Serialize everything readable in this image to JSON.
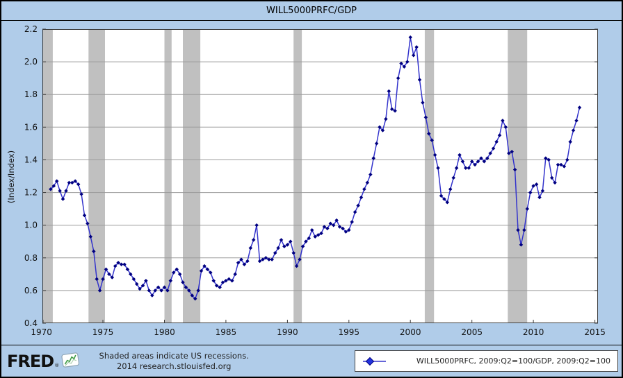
{
  "window": {
    "background_color": "#b0cce9",
    "border_color": "#000000"
  },
  "title": "WILL5000PRFC/GDP",
  "footer": {
    "logo_text": "FRED",
    "logo_reg": "®",
    "logo_chart_icon": "line-chart-icon",
    "logo_icon_color": "#3f9b44",
    "note_line1": "Shaded areas indicate US recessions.",
    "note_line2": "2014 research.stlouisfed.org",
    "legend": {
      "marker": "diamond-with-line",
      "marker_color": "#2233dd",
      "marker_edge_color": "#000080",
      "line_color": "#3333cc",
      "label": "WILL5000PRFC, 2009:Q2=100/GDP, 2009:Q2=100"
    }
  },
  "chart_data": {
    "type": "line",
    "title": "WILL5000PRFC/GDP",
    "xlabel": "",
    "ylabel": "(Index/Index)",
    "xlim": [
      1970.08,
      2015.25
    ],
    "ylim": [
      0.4,
      2.2
    ],
    "x_ticks": [
      1970,
      1975,
      1980,
      1985,
      1990,
      1995,
      2000,
      2005,
      2010,
      2015
    ],
    "y_ticks": [
      0.4,
      0.6,
      0.8,
      1.0,
      1.2,
      1.4,
      1.6,
      1.8,
      2.0,
      2.2
    ],
    "grid": "horizontal",
    "grid_color": "#9a9a9a",
    "frame_color": "#3a3a3a",
    "plot_background": "#ffffff",
    "line_color": "#3333cc",
    "marker": "diamond",
    "marker_color": "#000080",
    "recession_color": "#c0c0c0",
    "recessions": [
      [
        1969.92,
        1970.92
      ],
      [
        1973.83,
        1975.17
      ],
      [
        1980.0,
        1980.58
      ],
      [
        1981.5,
        1982.92
      ],
      [
        1990.5,
        1991.17
      ],
      [
        2001.17,
        2001.92
      ],
      [
        2007.92,
        2009.5
      ]
    ],
    "series": [
      {
        "name": "WILL5000PRFC, 2009:Q2=100/GDP, 2009:Q2=100",
        "frequency": "quarterly",
        "x_start": 1970.75,
        "x_step": 0.25,
        "values": [
          1.22,
          1.24,
          1.27,
          1.21,
          1.16,
          1.21,
          1.26,
          1.26,
          1.27,
          1.25,
          1.19,
          1.06,
          1.01,
          0.93,
          0.84,
          0.67,
          0.6,
          0.67,
          0.73,
          0.7,
          0.68,
          0.75,
          0.77,
          0.76,
          0.76,
          0.73,
          0.7,
          0.67,
          0.64,
          0.61,
          0.63,
          0.66,
          0.6,
          0.57,
          0.6,
          0.62,
          0.6,
          0.62,
          0.6,
          0.66,
          0.71,
          0.73,
          0.7,
          0.65,
          0.62,
          0.6,
          0.57,
          0.55,
          0.6,
          0.72,
          0.75,
          0.73,
          0.71,
          0.66,
          0.63,
          0.62,
          0.65,
          0.66,
          0.67,
          0.66,
          0.7,
          0.77,
          0.79,
          0.76,
          0.78,
          0.86,
          0.91,
          1.0,
          0.78,
          0.79,
          0.8,
          0.79,
          0.79,
          0.83,
          0.86,
          0.91,
          0.87,
          0.88,
          0.9,
          0.83,
          0.75,
          0.79,
          0.87,
          0.9,
          0.92,
          0.97,
          0.93,
          0.94,
          0.95,
          0.99,
          0.98,
          1.01,
          1.0,
          1.03,
          0.99,
          0.98,
          0.96,
          0.97,
          1.02,
          1.08,
          1.12,
          1.17,
          1.22,
          1.26,
          1.31,
          1.41,
          1.5,
          1.6,
          1.58,
          1.65,
          1.82,
          1.71,
          1.7,
          1.9,
          1.99,
          1.97,
          2.0,
          2.15,
          2.04,
          2.09,
          1.89,
          1.75,
          1.66,
          1.56,
          1.52,
          1.43,
          1.35,
          1.18,
          1.16,
          1.14,
          1.22,
          1.29,
          1.35,
          1.43,
          1.39,
          1.35,
          1.35,
          1.39,
          1.37,
          1.39,
          1.41,
          1.39,
          1.41,
          1.44,
          1.47,
          1.51,
          1.55,
          1.64,
          1.6,
          1.44,
          1.45,
          1.34,
          0.97,
          0.88,
          0.97,
          1.1,
          1.2,
          1.24,
          1.25,
          1.17,
          1.21,
          1.41,
          1.4,
          1.29,
          1.26,
          1.37,
          1.37,
          1.36,
          1.4,
          1.51,
          1.58,
          1.64,
          1.72
        ]
      }
    ]
  }
}
